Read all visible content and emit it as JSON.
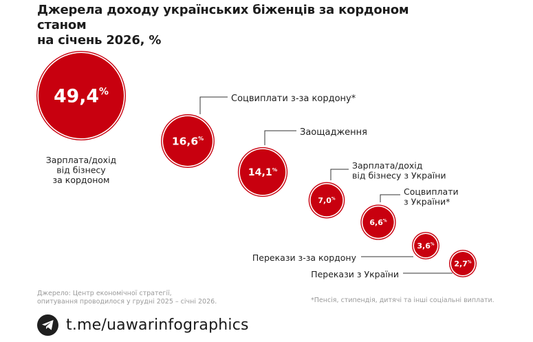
{
  "title": {
    "line1": "Джерела доходу українських біженців за кордоном станом",
    "line2": "на січень 2026, %"
  },
  "chart_data": {
    "type": "bubble",
    "unit": "%",
    "items": [
      {
        "label": [
          "Зарплата/дохід",
          "від бізнесу",
          "за кордоном"
        ],
        "value": 49.4,
        "value_text": "49,4"
      },
      {
        "label": [
          "Соцвиплати з-за кордону*"
        ],
        "value": 16.6,
        "value_text": "16,6"
      },
      {
        "label": [
          "Заощадження"
        ],
        "value": 14.1,
        "value_text": "14,1"
      },
      {
        "label": [
          "Зарплата/дохід",
          "від бізнесу з України"
        ],
        "value": 7.0,
        "value_text": "7,0"
      },
      {
        "label": [
          "Соцвиплати",
          "з України*"
        ],
        "value": 6.6,
        "value_text": "6,6"
      },
      {
        "label": [
          "Перекази з-за кордону"
        ],
        "value": 3.6,
        "value_text": "3,6"
      },
      {
        "label": [
          "Перекази з України"
        ],
        "value": 2.7,
        "value_text": "2,7"
      }
    ],
    "color": "#c8000f"
  },
  "source": {
    "line1": "Джерело: Центр економічної стратегії,",
    "line2": "опитування проводилося у грудні 2025 – січні 2026."
  },
  "footnote": "*Пенсія, стипендія, дитячі та інші соціальні виплати.",
  "telegram": {
    "text": "t.me/uawarinfographics",
    "icon": "telegram-icon"
  }
}
